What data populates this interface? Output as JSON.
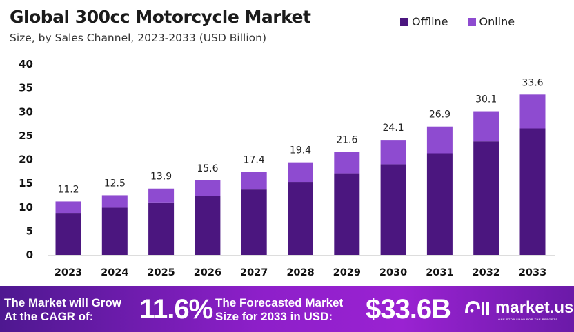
{
  "chart_data": {
    "type": "bar",
    "stacked": true,
    "title": "Global 300cc Motorcycle Market",
    "subtitle": "Size, by Sales Channel, 2023-2033 (USD Billion)",
    "categories": [
      "2023",
      "2024",
      "2025",
      "2026",
      "2027",
      "2028",
      "2029",
      "2030",
      "2031",
      "2032",
      "2033"
    ],
    "series": [
      {
        "name": "Offline",
        "color": "#4b167f",
        "values": [
          8.8,
          9.9,
          11.0,
          12.3,
          13.7,
          15.3,
          17.1,
          19.0,
          21.3,
          23.8,
          26.5
        ]
      },
      {
        "name": "Online",
        "color": "#8e4bd0",
        "values": [
          2.4,
          2.6,
          2.9,
          3.3,
          3.7,
          4.1,
          4.5,
          5.1,
          5.6,
          6.3,
          7.1
        ]
      }
    ],
    "totals": [
      "11.2",
      "12.5",
      "13.9",
      "15.6",
      "17.4",
      "19.4",
      "21.6",
      "24.1",
      "26.9",
      "30.1",
      "33.6"
    ],
    "yticks": [
      "0",
      "5",
      "10",
      "15",
      "20",
      "25",
      "30",
      "35",
      "40"
    ],
    "ylim": [
      0,
      40
    ],
    "grid": false,
    "legend_position": "top-right"
  },
  "banner": {
    "cagr_label_1": "The Market will Grow",
    "cagr_label_2": "At the CAGR of:",
    "cagr_value": "11.6%",
    "forecast_label_1": "The Forecasted Market",
    "forecast_label_2": "Size for 2033 in USD:",
    "forecast_value": "$33.6B",
    "logo_text": "market.us",
    "logo_tagline": "ONE STOP SHOP FOR THE REPORTS"
  }
}
